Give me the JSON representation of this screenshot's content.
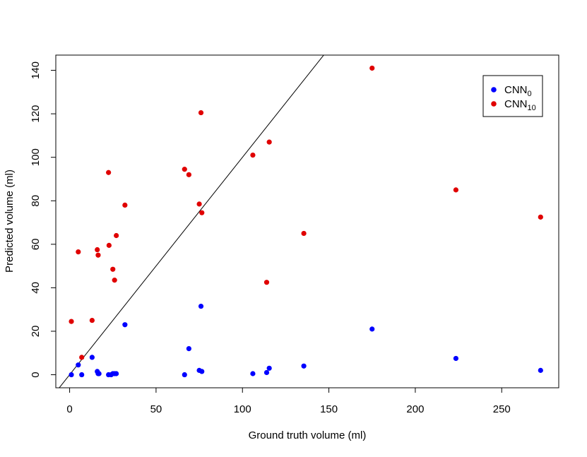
{
  "chart_data": {
    "type": "scatter",
    "title": "",
    "xlabel": "Ground truth volume (ml)",
    "ylabel": "Predicted volume (ml)",
    "xlim": [
      -8,
      283
    ],
    "ylim": [
      -6,
      147
    ],
    "x_ticks": [
      0,
      50,
      100,
      150,
      200,
      250
    ],
    "x_tick_labels": [
      "0",
      "50",
      "100",
      "150",
      "200",
      "250"
    ],
    "y_ticks": [
      0,
      20,
      40,
      60,
      80,
      100,
      120,
      140
    ],
    "y_tick_labels": [
      "0",
      "20",
      "40",
      "60",
      "80",
      "100",
      "120",
      "140"
    ],
    "grid": false,
    "legend_position": "top-right",
    "reference_line": {
      "slope": 1,
      "intercept": 0
    },
    "series": [
      {
        "name": "CNN",
        "subscript": "0",
        "color": "#0000ff",
        "x": [
          1,
          5,
          7,
          13,
          16,
          16.5,
          17,
          22.5,
          24,
          25,
          26,
          27,
          32,
          66.5,
          69,
          75,
          76,
          76.5,
          106,
          114,
          115.5,
          135.5,
          175,
          223.5,
          272.5
        ],
        "y": [
          0,
          4.5,
          0,
          8,
          1.5,
          0.5,
          0.5,
          0,
          0,
          0.5,
          0.5,
          0.5,
          23,
          0,
          12,
          2,
          31.5,
          1.5,
          0.5,
          1,
          3,
          4,
          21,
          7.5,
          2
        ]
      },
      {
        "name": "CNN",
        "subscript": "10",
        "color": "#e00000",
        "x": [
          1,
          5,
          7,
          13,
          16,
          16.5,
          22.5,
          22.8,
          25,
          26,
          27,
          32,
          66.5,
          69,
          75,
          76,
          76.5,
          106,
          114,
          115.5,
          135.5,
          175,
          223.5,
          272.5
        ],
        "y": [
          24.5,
          56.5,
          8,
          25,
          57.5,
          55,
          93,
          59.5,
          48.5,
          43.5,
          64,
          78,
          94.5,
          92,
          78.5,
          120.5,
          74.5,
          101,
          42.5,
          107,
          65,
          141,
          85,
          72.5
        ]
      }
    ]
  }
}
